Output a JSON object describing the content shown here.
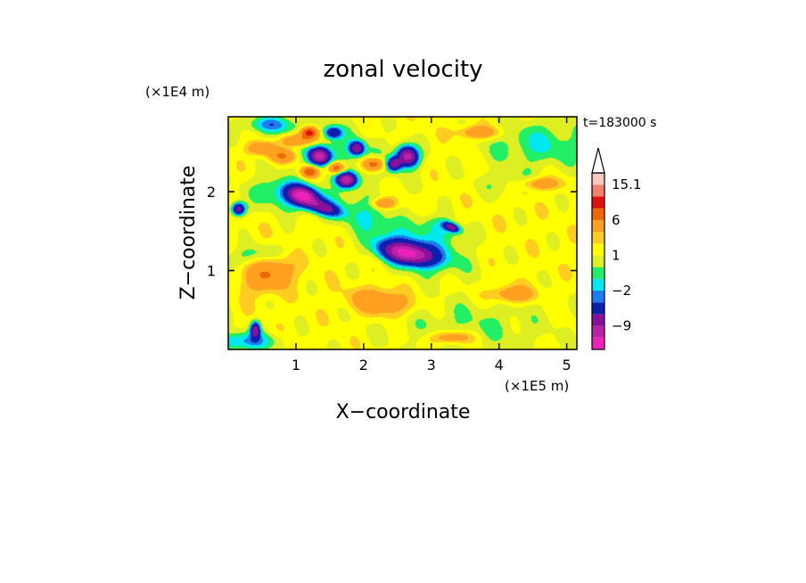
{
  "chart_data": {
    "type": "heatmap",
    "title": "zonal velocity",
    "time_label": "t=183000 s",
    "xlabel": "X−coordinate",
    "ylabel": "Z−coordinate",
    "x_unit": "(×1E5 m)",
    "y_unit": "(×1E4 m)",
    "xlim": [
      0,
      5.15
    ],
    "ylim": [
      0,
      2.95
    ],
    "x_ticks": [
      1,
      2,
      3,
      4,
      5
    ],
    "x_tick_labels": [
      "1",
      "2",
      "3",
      "4",
      "5"
    ],
    "y_ticks": [
      1,
      2
    ],
    "y_tick_labels": [
      "1",
      "2"
    ],
    "colorbar": {
      "levels": [
        -15,
        -12,
        -9,
        -6,
        -3,
        -2,
        -1,
        0,
        1,
        2,
        3,
        6,
        9,
        12,
        15.1
      ],
      "colors": [
        "#ee22bb",
        "#bb22aa",
        "#881199",
        "#0c20b0",
        "#1c7cf0",
        "#00e8f0",
        "#22ee66",
        "#ddee22",
        "#ffff00",
        "#ffcc22",
        "#ffa020",
        "#ee6600",
        "#e01010",
        "#f08070",
        "#f8c8c0"
      ],
      "tick_values": [
        15.1,
        6,
        1,
        -2,
        -9
      ],
      "tick_labels": [
        "15.1",
        "6",
        "1",
        "−2",
        "−9"
      ]
    },
    "background_value": 1.5,
    "blobs": [
      {
        "x": 1.1,
        "z": 1.95,
        "sx": 0.2,
        "sz": 0.1,
        "v": -12,
        "rot": -0.2
      },
      {
        "x": 0.95,
        "z": 1.95,
        "sx": 0.55,
        "sz": 0.2,
        "v": -4,
        "rot": -0.15
      },
      {
        "x": 1.4,
        "z": 1.8,
        "sx": 0.25,
        "sz": 0.08,
        "v": -7,
        "rot": -0.25
      },
      {
        "x": 1.35,
        "z": 2.45,
        "sx": 0.14,
        "sz": 0.1,
        "v": -12,
        "rot": 0
      },
      {
        "x": 1.75,
        "z": 2.15,
        "sx": 0.14,
        "sz": 0.09,
        "v": -12,
        "rot": 0
      },
      {
        "x": 1.9,
        "z": 2.55,
        "sx": 0.1,
        "sz": 0.08,
        "v": -9,
        "rot": 0
      },
      {
        "x": 2.45,
        "z": 2.35,
        "sx": 0.1,
        "sz": 0.08,
        "v": -9,
        "rot": 0
      },
      {
        "x": 2.65,
        "z": 2.45,
        "sx": 0.15,
        "sz": 0.12,
        "v": -12,
        "rot": -0.2
      },
      {
        "x": 1.55,
        "z": 2.75,
        "sx": 0.12,
        "sz": 0.07,
        "v": -6,
        "rot": 0
      },
      {
        "x": 2.0,
        "z": 1.7,
        "sx": 0.5,
        "sz": 0.2,
        "v": -2.5,
        "rot": -0.35
      },
      {
        "x": 2.65,
        "z": 1.22,
        "sx": 0.35,
        "sz": 0.12,
        "v": -12,
        "rot": -0.15
      },
      {
        "x": 2.8,
        "z": 1.25,
        "sx": 0.65,
        "sz": 0.25,
        "v": -4,
        "rot": -0.2
      },
      {
        "x": 3.15,
        "z": 1.55,
        "sx": 0.35,
        "sz": 0.13,
        "v": -2.5,
        "rot": -0.3
      },
      {
        "x": 3.3,
        "z": 1.55,
        "sx": 0.12,
        "sz": 0.05,
        "v": -8,
        "rot": -0.3
      },
      {
        "x": 0.15,
        "z": 1.78,
        "sx": 0.1,
        "sz": 0.08,
        "v": -9,
        "rot": 0
      },
      {
        "x": 0.4,
        "z": 0.25,
        "sx": 0.07,
        "sz": 0.1,
        "v": -9,
        "rot": 0
      },
      {
        "x": 0.2,
        "z": 0.1,
        "sx": 0.5,
        "sz": 0.12,
        "v": -4,
        "rot": 0
      },
      {
        "x": 1.5,
        "z": 2.55,
        "sx": 1.0,
        "sz": 0.35,
        "v": -2,
        "rot": -0.25
      },
      {
        "x": 4.6,
        "z": 2.6,
        "sx": 0.8,
        "sz": 0.3,
        "v": -2.5,
        "rot": 0
      },
      {
        "x": 4.2,
        "z": 2.1,
        "sx": 0.5,
        "sz": 0.15,
        "v": -1.5,
        "rot": 0
      },
      {
        "x": 3.6,
        "z": 0.3,
        "sx": 1.2,
        "sz": 0.35,
        "v": -1.5,
        "rot": 0
      },
      {
        "x": 0.4,
        "z": 1.2,
        "sx": 0.45,
        "sz": 0.12,
        "v": -2,
        "rot": 0.1
      },
      {
        "x": 0.6,
        "z": 2.85,
        "sx": 0.35,
        "sz": 0.1,
        "v": -3,
        "rot": 0
      },
      {
        "x": 1.05,
        "z": 2.65,
        "sx": 0.25,
        "sz": 0.08,
        "v": 6,
        "rot": 0
      },
      {
        "x": 1.2,
        "z": 2.75,
        "sx": 0.12,
        "sz": 0.07,
        "v": 10,
        "rot": 0
      },
      {
        "x": 1.2,
        "z": 2.25,
        "sx": 0.12,
        "sz": 0.07,
        "v": 8,
        "rot": 0
      },
      {
        "x": 1.6,
        "z": 2.3,
        "sx": 0.12,
        "sz": 0.07,
        "v": 8,
        "rot": 0
      },
      {
        "x": 2.15,
        "z": 2.35,
        "sx": 0.15,
        "sz": 0.08,
        "v": 7,
        "rot": 0
      },
      {
        "x": 0.5,
        "z": 2.55,
        "sx": 0.2,
        "sz": 0.08,
        "v": 5,
        "rot": 0
      },
      {
        "x": 0.8,
        "z": 2.45,
        "sx": 0.2,
        "sz": 0.08,
        "v": 5,
        "rot": 0
      },
      {
        "x": 2.3,
        "z": 1.85,
        "sx": 0.15,
        "sz": 0.06,
        "v": 5,
        "rot": 0
      },
      {
        "x": 0.6,
        "z": 0.95,
        "sx": 0.35,
        "sz": 0.2,
        "v": 4.5,
        "rot": 0.2
      },
      {
        "x": 2.25,
        "z": 0.6,
        "sx": 0.4,
        "sz": 0.15,
        "v": 4.5,
        "rot": -0.1
      },
      {
        "x": 4.2,
        "z": 0.7,
        "sx": 0.3,
        "sz": 0.1,
        "v": 4,
        "rot": 0
      },
      {
        "x": 3.3,
        "z": 0.15,
        "sx": 0.3,
        "sz": 0.08,
        "v": 4,
        "rot": 0
      },
      {
        "x": 4.6,
        "z": 2.1,
        "sx": 0.3,
        "sz": 0.08,
        "v": 4,
        "rot": 0
      },
      {
        "x": 3.7,
        "z": 2.75,
        "sx": 0.3,
        "sz": 0.08,
        "v": 4,
        "rot": 0
      }
    ]
  }
}
